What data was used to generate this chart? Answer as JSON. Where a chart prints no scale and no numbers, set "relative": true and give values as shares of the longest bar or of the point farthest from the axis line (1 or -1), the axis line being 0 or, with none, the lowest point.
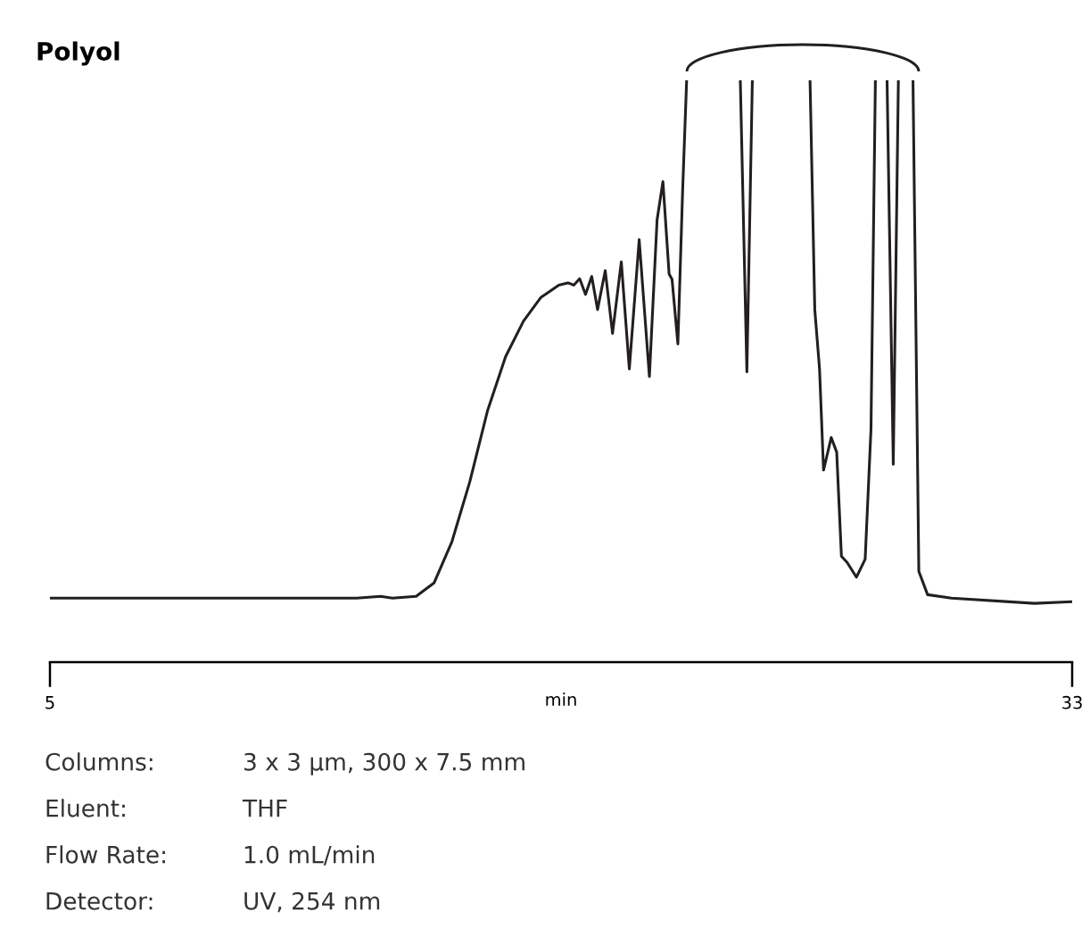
{
  "chart_data": {
    "type": "line",
    "title": "Polyol",
    "xlabel": "min",
    "relative": true,
    "xlim": [
      5,
      33
    ],
    "xticks": [
      5,
      33
    ],
    "tick_labels": "x",
    "grid": false,
    "marker": "none",
    "line_style": "solid",
    "annotations": [
      "Columns: 3 x 3 µm, 300 x 7.5 mm",
      "Eluent: THF",
      "Flow Rate: 1.0 mL/min",
      "Detector: UV, 254 nm"
    ],
    "series": [
      {
        "color": "#231f20",
        "x": [
          5,
          8.52,
          11.0,
          12.0,
          13.405,
          14.06,
          14.38,
          15.03,
          15.52,
          16.01,
          16.5,
          16.99,
          17.48,
          17.97,
          18.45,
          18.94,
          19.19,
          19.35,
          19.51,
          19.67,
          19.84,
          20.0,
          20.21,
          20.41,
          20.65,
          20.87,
          21.14,
          21.42,
          21.63,
          21.79,
          21.96,
          22.04,
          22.2,
          22.33,
          22.44,
          23.2,
          23.91,
          24.09,
          24.24,
          25.0,
          25.82,
          25.95,
          26.08,
          26.19,
          26.4,
          26.55,
          26.68,
          26.84,
          27.09,
          27.33,
          27.49,
          27.61,
          27.8,
          27.93,
          28.1,
          28.24,
          28.45,
          28.64,
          28.8,
          29.04,
          29.69,
          31.97,
          33
        ],
        "values": [
          0.11,
          0.11,
          0.11,
          0.11,
          0.11,
          0.113,
          0.11,
          0.113,
          0.136,
          0.207,
          0.31,
          0.433,
          0.525,
          0.586,
          0.627,
          0.648,
          0.652,
          0.648,
          0.659,
          0.632,
          0.663,
          0.606,
          0.673,
          0.565,
          0.688,
          0.504,
          0.726,
          0.491,
          0.76,
          0.826,
          0.667,
          0.658,
          0.547,
          0.81,
          1.0,
          null,
          1.0,
          0.499,
          1.0,
          null,
          1.0,
          0.606,
          0.504,
          0.33,
          0.386,
          0.361,
          0.182,
          0.171,
          0.146,
          0.177,
          0.401,
          1.0,
          null,
          1.0,
          0.34,
          1.0,
          null,
          1.0,
          0.156,
          0.116,
          0.11,
          0.101,
          0.104
        ]
      }
    ]
  }
}
